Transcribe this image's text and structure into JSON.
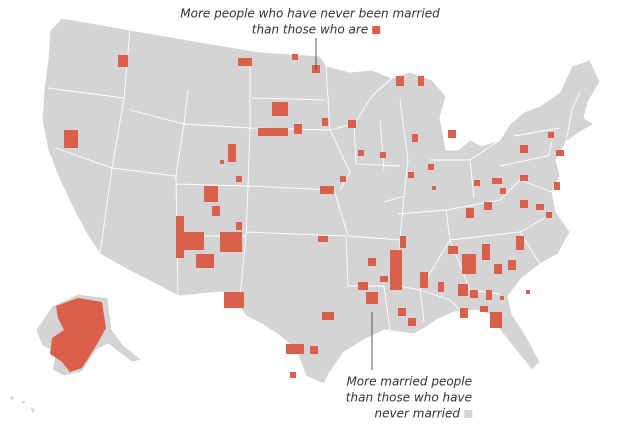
{
  "annotations": [
    {
      "lines": [
        "More people who have never been married",
        "than those who are"
      ],
      "color": "#dc5f4b"
    },
    {
      "lines": [
        "More married people",
        "than those who have",
        "never married"
      ],
      "color": "#d4d4d4"
    }
  ]
}
